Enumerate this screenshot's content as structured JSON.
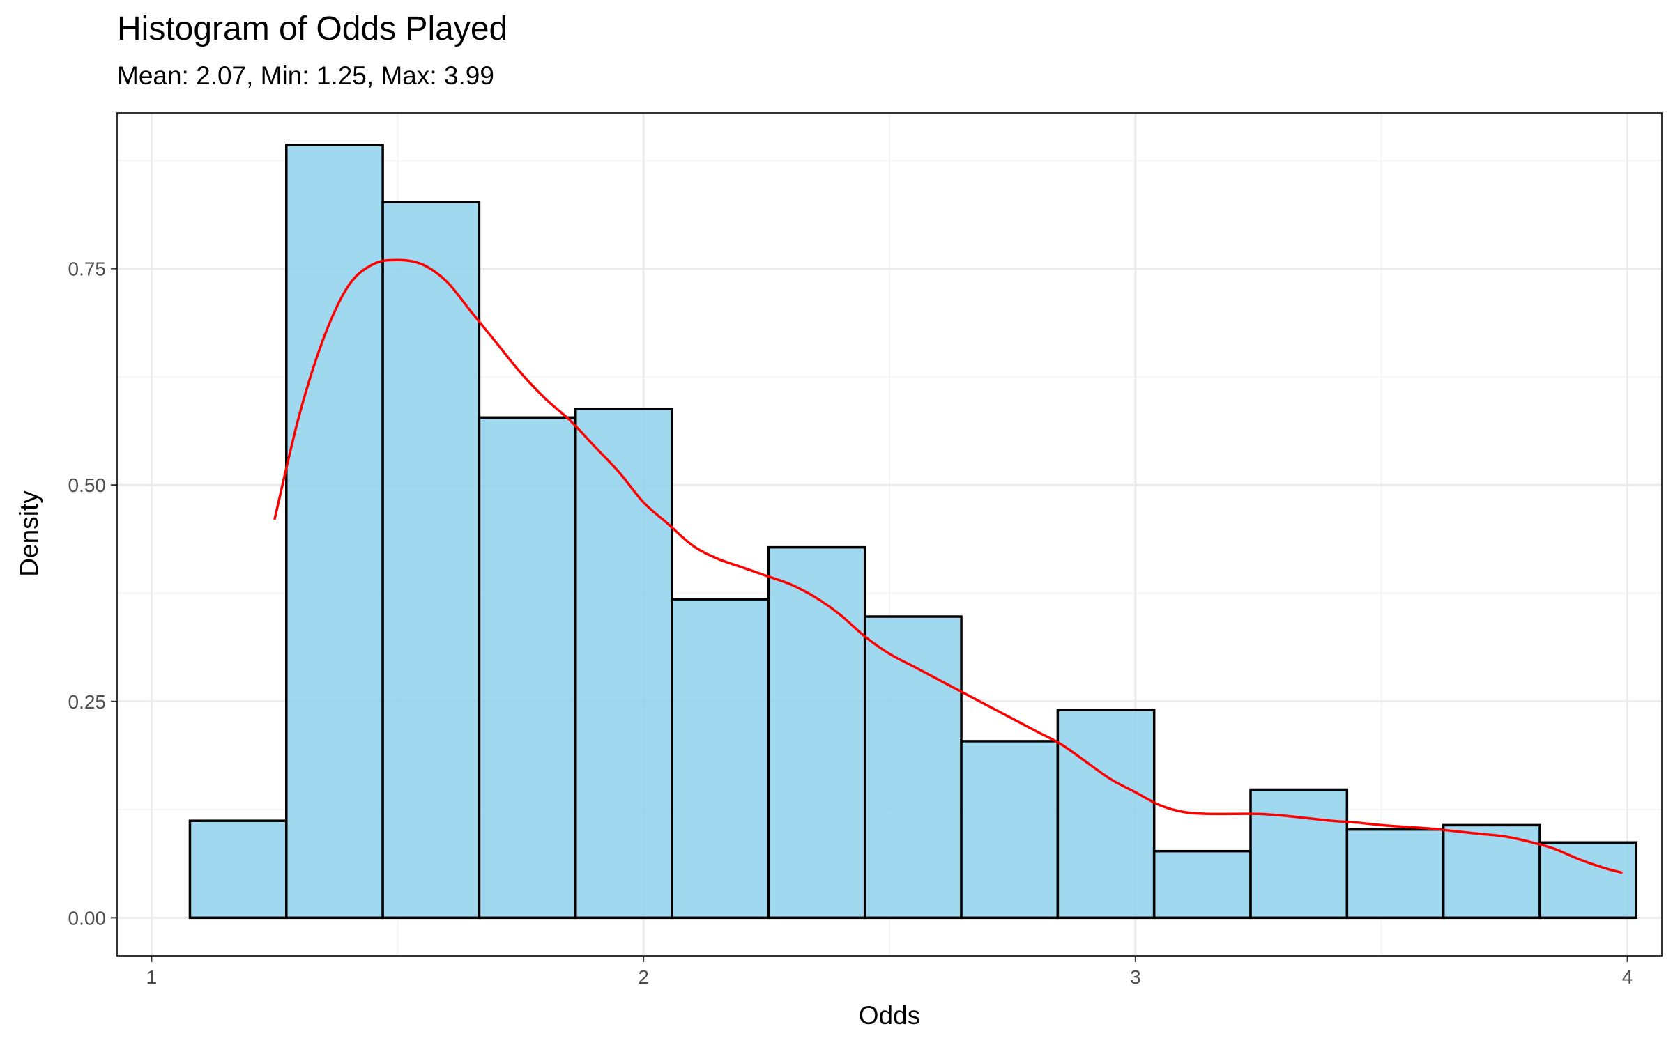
{
  "chart_data": {
    "type": "histogram",
    "title": "Histogram of Odds Played",
    "subtitle": "Mean: 2.07, Min: 1.25, Max: 3.99",
    "xlabel": "Odds",
    "ylabel": "Density",
    "xlim": [
      0.93,
      4.07
    ],
    "ylim": [
      -0.044,
      0.93
    ],
    "x_ticks": [
      1,
      2,
      3,
      4
    ],
    "x_tick_labels": [
      "1",
      "2",
      "3",
      "4"
    ],
    "y_ticks": [
      0,
      0.25,
      0.5,
      0.75
    ],
    "y_tick_labels": [
      "0.00",
      "0.25",
      "0.50",
      "0.75"
    ],
    "grid": true,
    "bins": [
      {
        "x0": 1.078,
        "x1": 1.274,
        "density": 0.112
      },
      {
        "x0": 1.274,
        "x1": 1.47,
        "density": 0.893
      },
      {
        "x0": 1.47,
        "x1": 1.666,
        "density": 0.827
      },
      {
        "x0": 1.666,
        "x1": 1.862,
        "density": 0.578
      },
      {
        "x0": 1.862,
        "x1": 2.058,
        "density": 0.588
      },
      {
        "x0": 2.058,
        "x1": 2.254,
        "density": 0.368
      },
      {
        "x0": 2.254,
        "x1": 2.45,
        "density": 0.428
      },
      {
        "x0": 2.45,
        "x1": 2.646,
        "density": 0.348
      },
      {
        "x0": 2.646,
        "x1": 2.842,
        "density": 0.204
      },
      {
        "x0": 2.842,
        "x1": 3.038,
        "density": 0.24
      },
      {
        "x0": 3.038,
        "x1": 3.234,
        "density": 0.077
      },
      {
        "x0": 3.234,
        "x1": 3.43,
        "density": 0.148
      },
      {
        "x0": 3.43,
        "x1": 3.626,
        "density": 0.102
      },
      {
        "x0": 3.626,
        "x1": 3.822,
        "density": 0.107
      },
      {
        "x0": 3.822,
        "x1": 4.018,
        "density": 0.087
      }
    ],
    "density_curve": {
      "x": [
        1.25,
        1.3,
        1.35,
        1.4,
        1.45,
        1.5,
        1.55,
        1.6,
        1.65,
        1.7,
        1.75,
        1.8,
        1.85,
        1.9,
        1.95,
        2.0,
        2.05,
        2.1,
        2.15,
        2.2,
        2.25,
        2.3,
        2.35,
        2.4,
        2.45,
        2.5,
        2.55,
        2.6,
        2.65,
        2.7,
        2.75,
        2.8,
        2.85,
        2.9,
        2.95,
        3.0,
        3.05,
        3.1,
        3.15,
        3.2,
        3.25,
        3.3,
        3.35,
        3.4,
        3.45,
        3.5,
        3.55,
        3.6,
        3.65,
        3.7,
        3.75,
        3.8,
        3.85,
        3.9,
        3.95,
        3.99
      ],
      "y": [
        0.46,
        0.58,
        0.67,
        0.73,
        0.755,
        0.76,
        0.755,
        0.735,
        0.7,
        0.665,
        0.63,
        0.6,
        0.575,
        0.545,
        0.515,
        0.48,
        0.455,
        0.43,
        0.415,
        0.405,
        0.395,
        0.385,
        0.37,
        0.35,
        0.325,
        0.305,
        0.29,
        0.275,
        0.26,
        0.245,
        0.23,
        0.215,
        0.2,
        0.18,
        0.16,
        0.145,
        0.13,
        0.122,
        0.12,
        0.12,
        0.12,
        0.118,
        0.115,
        0.112,
        0.11,
        0.107,
        0.105,
        0.103,
        0.1,
        0.097,
        0.094,
        0.088,
        0.08,
        0.068,
        0.058,
        0.052
      ]
    },
    "colors": {
      "bar_fill": "#87CEEB",
      "bar_stroke": "#000000",
      "curve": "#FF0000",
      "grid_major": "#EBEBEB",
      "grid_minor": "#F5F5F5",
      "panel_border": "#333333"
    }
  }
}
